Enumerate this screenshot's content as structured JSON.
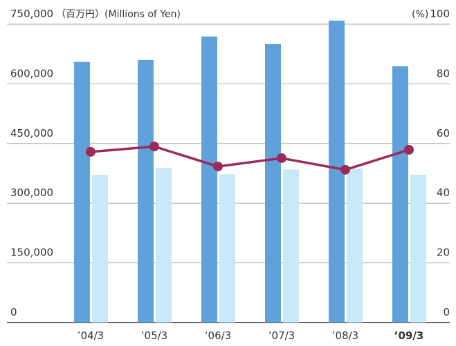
{
  "chart_data": {
    "type": "bar_line",
    "y_label": "（百万円）(Millions of Yen)",
    "y2_label": "(%)",
    "categories": [
      "’04/3",
      "’05/3",
      "’06/3",
      "’07/3",
      "’08/3",
      "’09/3"
    ],
    "bold_category": 5,
    "series": [
      {
        "type": "bar",
        "color": "#5fa1d8",
        "values": [
          655000,
          660000,
          719000,
          700000,
          759000,
          644000
        ]
      },
      {
        "type": "bar",
        "color": "#c9e9f9",
        "values": [
          371500,
          389000,
          373000,
          385000,
          387000,
          371500
        ]
      },
      {
        "type": "line",
        "axis": "y2",
        "color": "#9c2a5a",
        "values": [
          57.2,
          59.0,
          52.3,
          55.1,
          51.2,
          57.9
        ]
      }
    ],
    "ylim": [
      0,
      750000
    ],
    "yticks": [
      0,
      {
        "value": 150000,
        "label": "150,000"
      },
      {
        "value": 300000,
        "label": "300,000"
      },
      {
        "value": 450000,
        "label": "450,000"
      },
      {
        "value": 600000,
        "label": "600,000"
      },
      {
        "value": 750000,
        "label": "750,000"
      }
    ],
    "y2lim": [
      0,
      100
    ],
    "y2ticks": [
      0,
      20,
      40,
      60,
      80,
      100
    ],
    "grid": true
  }
}
